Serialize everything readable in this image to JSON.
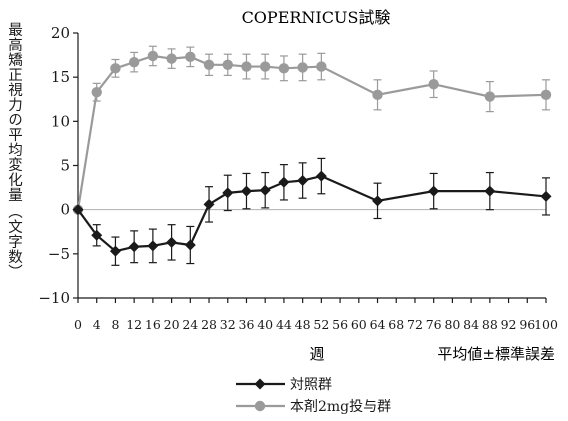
{
  "chart_data": {
    "type": "line",
    "title": "COPERNICUS試験",
    "ylabel": "最高矯正視力の平均変化量",
    "ylabel_unit": "（文字数）",
    "xlabel": "週",
    "note": "平均値±標準誤差",
    "ylim": [
      -10,
      20
    ],
    "y_ticks": [
      -10,
      -5,
      0,
      5,
      10,
      15,
      20
    ],
    "xlim": [
      0,
      100
    ],
    "x_ticks": [
      0,
      4,
      8,
      12,
      16,
      20,
      24,
      28,
      32,
      36,
      40,
      44,
      48,
      52,
      56,
      60,
      64,
      68,
      72,
      76,
      80,
      84,
      88,
      92,
      96,
      100
    ],
    "zero_line": true,
    "grid": false,
    "legend_position": "bottom-left",
    "series": [
      {
        "name": "対照群",
        "color": "#1a1a1a",
        "marker": "diamond",
        "points": [
          {
            "x": 0,
            "y": 0,
            "err": 0
          },
          {
            "x": 4,
            "y": -2.9,
            "err": 1.2
          },
          {
            "x": 8,
            "y": -4.7,
            "err": 1.6
          },
          {
            "x": 12,
            "y": -4.2,
            "err": 1.8
          },
          {
            "x": 16,
            "y": -4.1,
            "err": 1.9
          },
          {
            "x": 20,
            "y": -3.7,
            "err": 2.0
          },
          {
            "x": 24,
            "y": -4.0,
            "err": 2.1
          },
          {
            "x": 28,
            "y": 0.6,
            "err": 2.0
          },
          {
            "x": 32,
            "y": 1.9,
            "err": 2.0
          },
          {
            "x": 36,
            "y": 2.1,
            "err": 2.0
          },
          {
            "x": 40,
            "y": 2.2,
            "err": 2.0
          },
          {
            "x": 44,
            "y": 3.1,
            "err": 2.0
          },
          {
            "x": 48,
            "y": 3.3,
            "err": 2.0
          },
          {
            "x": 52,
            "y": 3.8,
            "err": 2.0
          },
          {
            "x": 64,
            "y": 1.0,
            "err": 2.0
          },
          {
            "x": 76,
            "y": 2.1,
            "err": 2.0
          },
          {
            "x": 88,
            "y": 2.1,
            "err": 2.1
          },
          {
            "x": 100,
            "y": 1.5,
            "err": 2.1
          }
        ]
      },
      {
        "name": "本剤2mg投与群",
        "color": "#9a9a9a",
        "marker": "circle",
        "points": [
          {
            "x": 0,
            "y": 0,
            "err": 0
          },
          {
            "x": 4,
            "y": 13.3,
            "err": 1.0
          },
          {
            "x": 8,
            "y": 16.0,
            "err": 1.0
          },
          {
            "x": 12,
            "y": 16.7,
            "err": 1.1
          },
          {
            "x": 16,
            "y": 17.4,
            "err": 1.1
          },
          {
            "x": 20,
            "y": 17.1,
            "err": 1.1
          },
          {
            "x": 24,
            "y": 17.3,
            "err": 1.1
          },
          {
            "x": 28,
            "y": 16.4,
            "err": 1.2
          },
          {
            "x": 32,
            "y": 16.4,
            "err": 1.2
          },
          {
            "x": 36,
            "y": 16.2,
            "err": 1.4
          },
          {
            "x": 40,
            "y": 16.2,
            "err": 1.4
          },
          {
            "x": 44,
            "y": 16.0,
            "err": 1.4
          },
          {
            "x": 48,
            "y": 16.1,
            "err": 1.5
          },
          {
            "x": 52,
            "y": 16.2,
            "err": 1.5
          },
          {
            "x": 64,
            "y": 13.0,
            "err": 1.7
          },
          {
            "x": 76,
            "y": 14.2,
            "err": 1.5
          },
          {
            "x": 88,
            "y": 12.8,
            "err": 1.7
          },
          {
            "x": 100,
            "y": 13.0,
            "err": 1.7
          }
        ]
      }
    ]
  }
}
